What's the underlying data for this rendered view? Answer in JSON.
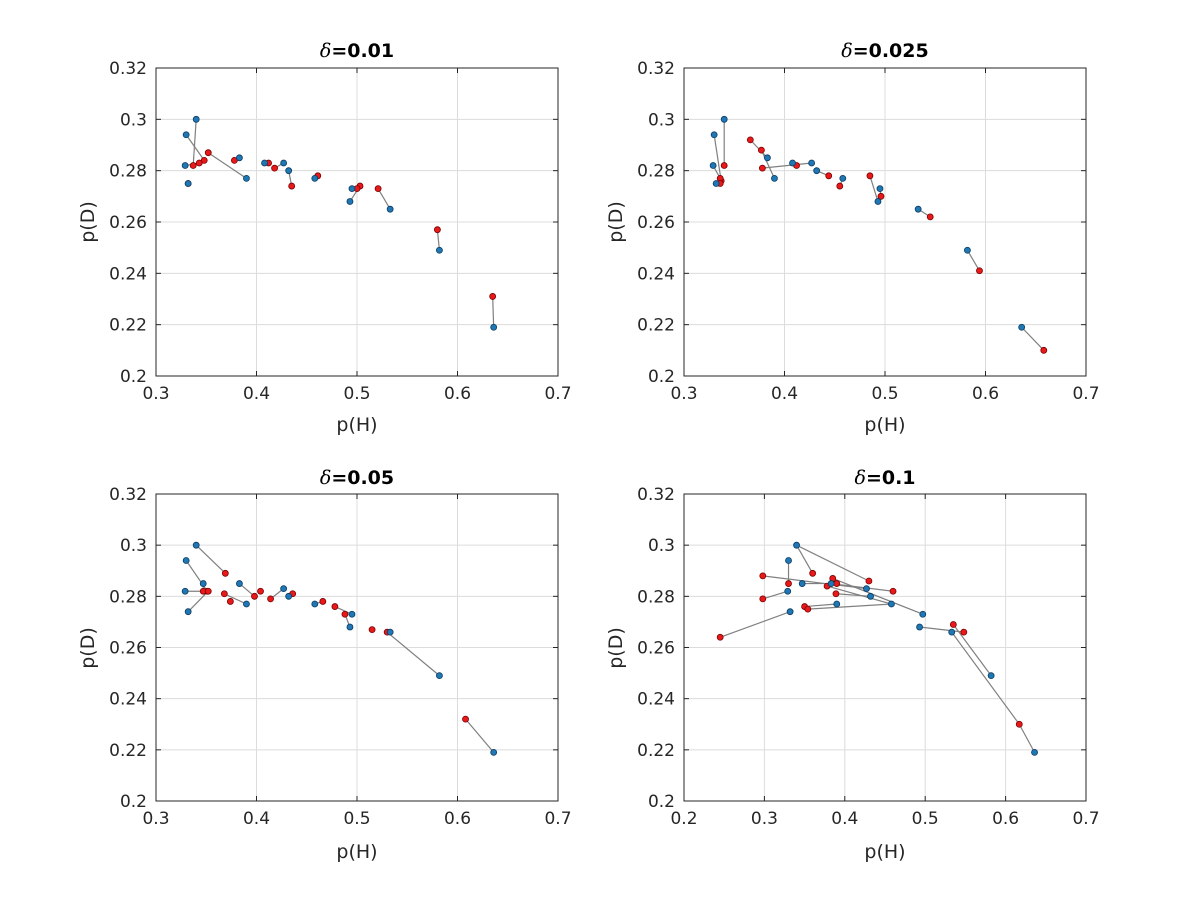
{
  "colors": {
    "marker_blue": "#1f77b4",
    "marker_red": "#e8191b",
    "link": "#808080"
  },
  "chart_data": [
    {
      "type": "scatter",
      "title_symbol": "δ",
      "title_value": "=0.01",
      "xlabel": "p(H)",
      "ylabel": "p(D)",
      "xlim": [
        0.3,
        0.7
      ],
      "ylim": [
        0.2,
        0.32
      ],
      "xticks": [
        0.3,
        0.4,
        0.5,
        0.6,
        0.7
      ],
      "yticks": [
        0.2,
        0.22,
        0.24,
        0.26,
        0.28,
        0.3,
        0.32
      ],
      "xtick_labels": [
        "0.3",
        "0.4",
        "0.5",
        "0.6",
        "0.7"
      ],
      "ytick_labels": [
        "0.2",
        "0.22",
        "0.24",
        "0.26",
        "0.28",
        "0.3",
        "0.32"
      ],
      "grid": true,
      "series": [
        {
          "name": "blue",
          "points": [
            [
              0.33,
              0.294
            ],
            [
              0.34,
              0.3
            ],
            [
              0.329,
              0.282
            ],
            [
              0.332,
              0.275
            ],
            [
              0.383,
              0.285
            ],
            [
              0.39,
              0.277
            ],
            [
              0.408,
              0.283
            ],
            [
              0.427,
              0.283
            ],
            [
              0.432,
              0.28
            ],
            [
              0.458,
              0.277
            ],
            [
              0.493,
              0.268
            ],
            [
              0.495,
              0.273
            ],
            [
              0.533,
              0.265
            ],
            [
              0.582,
              0.249
            ],
            [
              0.636,
              0.219
            ]
          ]
        },
        {
          "name": "red",
          "points": [
            [
              0.348,
              0.284
            ],
            [
              0.337,
              0.282
            ],
            [
              0.343,
              0.283
            ],
            [
              0.332,
              0.275
            ],
            [
              0.378,
              0.284
            ],
            [
              0.352,
              0.287
            ],
            [
              0.412,
              0.283
            ],
            [
              0.418,
              0.281
            ],
            [
              0.435,
              0.274
            ],
            [
              0.461,
              0.278
            ],
            [
              0.503,
              0.274
            ],
            [
              0.5,
              0.273
            ],
            [
              0.521,
              0.273
            ],
            [
              0.58,
              0.257
            ],
            [
              0.635,
              0.231
            ]
          ]
        }
      ],
      "links": [
        [
          0,
          0
        ],
        [
          1,
          1
        ],
        [
          2,
          2
        ],
        [
          3,
          3
        ],
        [
          4,
          4
        ],
        [
          5,
          5
        ],
        [
          6,
          6
        ],
        [
          7,
          7
        ],
        [
          8,
          8
        ],
        [
          9,
          9
        ],
        [
          10,
          10
        ],
        [
          11,
          11
        ],
        [
          12,
          12
        ],
        [
          13,
          13
        ],
        [
          14,
          14
        ]
      ]
    },
    {
      "type": "scatter",
      "title_symbol": "δ",
      "title_value": "=0.025",
      "xlabel": "p(H)",
      "ylabel": "p(D)",
      "xlim": [
        0.3,
        0.7
      ],
      "ylim": [
        0.2,
        0.32
      ],
      "xticks": [
        0.3,
        0.4,
        0.5,
        0.6,
        0.7
      ],
      "yticks": [
        0.2,
        0.22,
        0.24,
        0.26,
        0.28,
        0.3,
        0.32
      ],
      "xtick_labels": [
        "0.3",
        "0.4",
        "0.5",
        "0.6",
        "0.7"
      ],
      "ytick_labels": [
        "0.2",
        "0.22",
        "0.24",
        "0.26",
        "0.28",
        "0.3",
        "0.32"
      ],
      "grid": true,
      "series": [
        {
          "name": "blue",
          "points": [
            [
              0.33,
              0.294
            ],
            [
              0.34,
              0.3
            ],
            [
              0.329,
              0.282
            ],
            [
              0.332,
              0.275
            ],
            [
              0.383,
              0.285
            ],
            [
              0.39,
              0.277
            ],
            [
              0.408,
              0.283
            ],
            [
              0.427,
              0.283
            ],
            [
              0.432,
              0.28
            ],
            [
              0.458,
              0.277
            ],
            [
              0.493,
              0.268
            ],
            [
              0.495,
              0.273
            ],
            [
              0.533,
              0.265
            ],
            [
              0.582,
              0.249
            ],
            [
              0.636,
              0.219
            ]
          ]
        },
        {
          "name": "red",
          "points": [
            [
              0.337,
              0.276
            ],
            [
              0.34,
              0.282
            ],
            [
              0.336,
              0.277
            ],
            [
              0.336,
              0.275
            ],
            [
              0.366,
              0.292
            ],
            [
              0.377,
              0.288
            ],
            [
              0.412,
              0.282
            ],
            [
              0.378,
              0.281
            ],
            [
              0.444,
              0.278
            ],
            [
              0.455,
              0.274
            ],
            [
              0.485,
              0.278
            ],
            [
              0.496,
              0.27
            ],
            [
              0.545,
              0.262
            ],
            [
              0.594,
              0.241
            ],
            [
              0.658,
              0.21
            ]
          ]
        }
      ],
      "links": [
        [
          0,
          0
        ],
        [
          1,
          1
        ],
        [
          2,
          2
        ],
        [
          3,
          3
        ],
        [
          4,
          4
        ],
        [
          5,
          5
        ],
        [
          6,
          6
        ],
        [
          7,
          7
        ],
        [
          8,
          8
        ],
        [
          9,
          9
        ],
        [
          10,
          10
        ],
        [
          11,
          11
        ],
        [
          12,
          12
        ],
        [
          13,
          13
        ],
        [
          14,
          14
        ]
      ]
    },
    {
      "type": "scatter",
      "title_symbol": "δ",
      "title_value": "=0.05",
      "xlabel": "p(H)",
      "ylabel": "p(D)",
      "xlim": [
        0.3,
        0.7
      ],
      "ylim": [
        0.2,
        0.32
      ],
      "xticks": [
        0.3,
        0.4,
        0.5,
        0.6,
        0.7
      ],
      "yticks": [
        0.2,
        0.22,
        0.24,
        0.26,
        0.28,
        0.3,
        0.32
      ],
      "xtick_labels": [
        "0.3",
        "0.4",
        "0.5",
        "0.6",
        "0.7"
      ],
      "ytick_labels": [
        "0.2",
        "0.22",
        "0.24",
        "0.26",
        "0.28",
        "0.3",
        "0.32"
      ],
      "grid": true,
      "series": [
        {
          "name": "blue",
          "points": [
            [
              0.33,
              0.294
            ],
            [
              0.34,
              0.3
            ],
            [
              0.329,
              0.282
            ],
            [
              0.332,
              0.274
            ],
            [
              0.347,
              0.285
            ],
            [
              0.383,
              0.285
            ],
            [
              0.39,
              0.277
            ],
            [
              0.427,
              0.283
            ],
            [
              0.432,
              0.28
            ],
            [
              0.458,
              0.277
            ],
            [
              0.493,
              0.268
            ],
            [
              0.495,
              0.273
            ],
            [
              0.533,
              0.266
            ],
            [
              0.582,
              0.249
            ],
            [
              0.636,
              0.219
            ]
          ]
        },
        {
          "name": "red",
          "points": [
            [
              0.351,
              0.282
            ],
            [
              0.374,
              0.278
            ],
            [
              0.347,
              0.282
            ],
            [
              0.352,
              0.282
            ],
            [
              0.369,
              0.289
            ],
            [
              0.368,
              0.281
            ],
            [
              0.398,
              0.28
            ],
            [
              0.404,
              0.282
            ],
            [
              0.414,
              0.279
            ],
            [
              0.436,
              0.281
            ],
            [
              0.478,
              0.276
            ],
            [
              0.466,
              0.278
            ],
            [
              0.488,
              0.273
            ],
            [
              0.515,
              0.267
            ],
            [
              0.53,
              0.266
            ],
            [
              0.608,
              0.232
            ]
          ]
        }
      ],
      "links": [
        [
          0,
          0
        ],
        [
          1,
          4
        ],
        [
          2,
          3
        ],
        [
          3,
          3
        ],
        [
          4,
          2
        ],
        [
          5,
          6
        ],
        [
          6,
          5
        ],
        [
          7,
          8
        ],
        [
          8,
          9
        ],
        [
          9,
          11
        ],
        [
          10,
          12
        ],
        [
          11,
          10
        ],
        [
          12,
          14
        ],
        [
          13,
          14
        ],
        [
          14,
          15
        ]
      ]
    },
    {
      "type": "scatter",
      "title_symbol": "δ",
      "title_value": "=0.1",
      "xlabel": "p(H)",
      "ylabel": "p(D)",
      "xlim": [
        0.2,
        0.7
      ],
      "ylim": [
        0.2,
        0.32
      ],
      "xticks": [
        0.2,
        0.3,
        0.4,
        0.5,
        0.6,
        0.7
      ],
      "yticks": [
        0.2,
        0.22,
        0.24,
        0.26,
        0.28,
        0.3,
        0.32
      ],
      "xtick_labels": [
        "0.2",
        "0.3",
        "0.4",
        "0.5",
        "0.6",
        "0.7"
      ],
      "ytick_labels": [
        "0.2",
        "0.22",
        "0.24",
        "0.26",
        "0.28",
        "0.3",
        "0.32"
      ],
      "grid": true,
      "series": [
        {
          "name": "blue",
          "points": [
            [
              0.33,
              0.294
            ],
            [
              0.34,
              0.3
            ],
            [
              0.329,
              0.282
            ],
            [
              0.332,
              0.274
            ],
            [
              0.347,
              0.285
            ],
            [
              0.383,
              0.285
            ],
            [
              0.39,
              0.277
            ],
            [
              0.427,
              0.283
            ],
            [
              0.432,
              0.28
            ],
            [
              0.458,
              0.277
            ],
            [
              0.493,
              0.268
            ],
            [
              0.497,
              0.273
            ],
            [
              0.533,
              0.266
            ],
            [
              0.582,
              0.249
            ],
            [
              0.636,
              0.219
            ]
          ]
        },
        {
          "name": "red",
          "points": [
            [
              0.298,
              0.288
            ],
            [
              0.298,
              0.279
            ],
            [
              0.33,
              0.285
            ],
            [
              0.35,
              0.276
            ],
            [
              0.36,
              0.289
            ],
            [
              0.378,
              0.284
            ],
            [
              0.385,
              0.287
            ],
            [
              0.389,
              0.281
            ],
            [
              0.39,
              0.285
            ],
            [
              0.43,
              0.286
            ],
            [
              0.46,
              0.282
            ],
            [
              0.535,
              0.269
            ],
            [
              0.548,
              0.266
            ],
            [
              0.617,
              0.23
            ],
            [
              0.245,
              0.264
            ],
            [
              0.354,
              0.275
            ]
          ]
        }
      ],
      "links": [
        [
          0,
          2
        ],
        [
          1,
          4
        ],
        [
          1,
          9
        ],
        [
          2,
          1
        ],
        [
          4,
          8
        ],
        [
          5,
          10
        ],
        [
          6,
          3
        ],
        [
          7,
          0
        ],
        [
          8,
          7
        ],
        [
          9,
          5
        ],
        [
          10,
          12
        ],
        [
          11,
          6
        ],
        [
          12,
          13
        ],
        [
          13,
          11
        ],
        [
          14,
          13
        ],
        [
          3,
          14
        ],
        [
          9,
          15
        ]
      ]
    }
  ]
}
